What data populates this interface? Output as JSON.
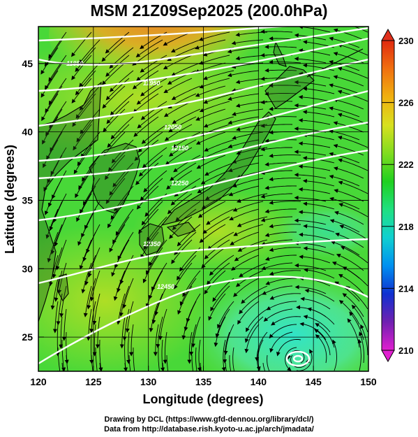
{
  "title": "MSM 21Z09Sep2025 (200.0hPa)",
  "map": {
    "region": "Japan and surrounding seas",
    "x_axis": {
      "label": "Longitude (degrees)",
      "min": 120,
      "max": 150,
      "ticks": [
        "120",
        "125",
        "130",
        "135",
        "140",
        "145",
        "150"
      ]
    },
    "y_axis": {
      "label": "Latitude  (degrees)",
      "min": 22.5,
      "max": 47.7,
      "ticks": [
        "25",
        "30",
        "35",
        "40",
        "45"
      ]
    },
    "grid": true,
    "field": "temperature",
    "overlay": "streamlines",
    "contours": "white geopotential height lines",
    "contour_labels": [
      "11850",
      "11950",
      "12050",
      "12150",
      "12250",
      "12350",
      "12450"
    ]
  },
  "colorbar": {
    "ticks": [
      "230",
      "226",
      "222",
      "218",
      "214",
      "210"
    ],
    "min": 210,
    "max": 230,
    "extend": "both",
    "colors": [
      "#e020d0",
      "#7020b0",
      "#1030d0",
      "#0090f0",
      "#10d0d0",
      "#20e080",
      "#20d020",
      "#80dc20",
      "#d8e020",
      "#f0b010",
      "#f07010",
      "#e02a10"
    ]
  },
  "credits": [
    "Drawing by DCL (https://www.gfd-dennou.org/library/dcl/)",
    "Data from http://database.rish.kyoto-u.ac.jp/arch/jmadata/"
  ]
}
